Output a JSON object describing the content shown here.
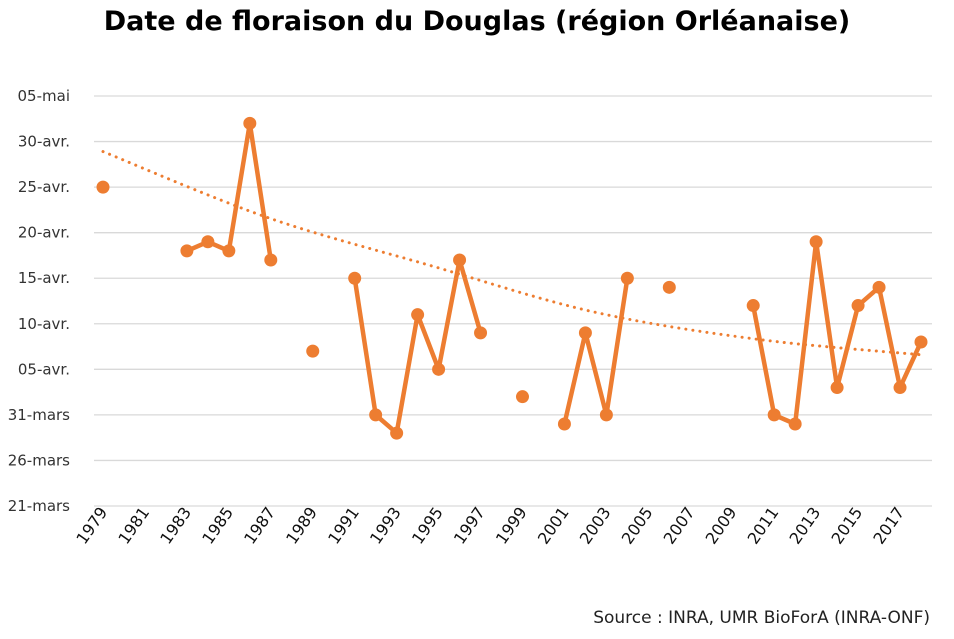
{
  "chart_data": {
    "type": "line",
    "title": "Date de floraison du Douglas (région Orléanaise)",
    "source": "Source : INRA, UMR BioForA (INRA-ONF)",
    "x_tick_labels": [
      "1979",
      "1981",
      "1983",
      "1985",
      "1987",
      "1989",
      "1991",
      "1993",
      "1995",
      "1997",
      "1999",
      "2001",
      "2003",
      "2005",
      "2007",
      "2009",
      "2011",
      "2013",
      "2015",
      "2017"
    ],
    "x_categories": [
      1979,
      1980,
      1981,
      1982,
      1983,
      1984,
      1985,
      1986,
      1987,
      1988,
      1989,
      1990,
      1991,
      1992,
      1993,
      1994,
      1995,
      1996,
      1997,
      1998,
      1999,
      2000,
      2001,
      2002,
      2003,
      2004,
      2005,
      2006,
      2007,
      2008,
      2009,
      2010,
      2011,
      2012,
      2013,
      2014,
      2015,
      2016,
      2017,
      2018
    ],
    "y_tick_labels": [
      "21-mars",
      "26-mars",
      "31-mars",
      "05-avr.",
      "10-avr.",
      "15-avr.",
      "20-avr.",
      "25-avr.",
      "30-avr.",
      "05-mai"
    ],
    "y_unit": "days after 21 March",
    "ylim": [
      0,
      45
    ],
    "grid": true,
    "series": [
      {
        "color": "#ED7D31",
        "values": [
          35,
          null,
          null,
          null,
          28,
          29,
          28,
          42,
          27,
          null,
          17,
          null,
          25,
          10,
          8,
          21,
          15,
          27,
          19,
          null,
          12,
          null,
          9,
          19,
          10,
          25,
          null,
          24,
          null,
          null,
          null,
          22,
          10,
          9,
          29,
          13,
          22,
          24,
          13,
          18
        ]
      }
    ],
    "trendline": {
      "style": "dotted",
      "type": "polynomial",
      "color": "#ED7D31",
      "values": [
        38.9,
        31.7,
        26.4,
        21.3,
        18.3,
        16.6
      ]
    }
  }
}
